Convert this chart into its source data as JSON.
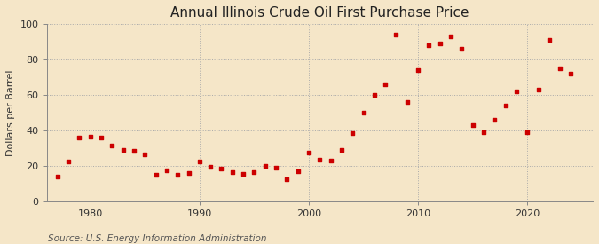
{
  "title": "Annual Illinois Crude Oil First Purchase Price",
  "ylabel": "Dollars per Barrel",
  "source": "Source: U.S. Energy Information Administration",
  "background_color": "#f5e6c8",
  "marker_color": "#cc0000",
  "years": [
    1977,
    1978,
    1979,
    1980,
    1981,
    1982,
    1983,
    1984,
    1985,
    1986,
    1987,
    1988,
    1989,
    1990,
    1991,
    1992,
    1993,
    1994,
    1995,
    1996,
    1997,
    1998,
    1999,
    2000,
    2001,
    2002,
    2003,
    2004,
    2005,
    2006,
    2007,
    2008,
    2009,
    2010,
    2011,
    2012,
    2013,
    2014,
    2015,
    2016,
    2017,
    2018,
    2019,
    2020,
    2021,
    2022,
    2023,
    2024
  ],
  "values": [
    14.0,
    22.5,
    36.0,
    36.5,
    36.0,
    31.5,
    29.0,
    28.5,
    26.5,
    15.0,
    17.5,
    15.0,
    16.0,
    22.5,
    19.5,
    18.5,
    16.5,
    15.5,
    16.5,
    20.0,
    19.0,
    12.5,
    17.0,
    27.5,
    23.5,
    23.0,
    29.0,
    38.5,
    50.0,
    60.0,
    66.0,
    94.0,
    56.0,
    74.0,
    88.0,
    89.0,
    93.0,
    86.0,
    43.0,
    39.0,
    46.0,
    54.0,
    62.0,
    39.0,
    63.0,
    91.0,
    75.0,
    72.0
  ],
  "ylim": [
    0,
    100
  ],
  "yticks": [
    0,
    20,
    40,
    60,
    80,
    100
  ],
  "xlim": [
    1976,
    2026
  ],
  "xtick_major": [
    1980,
    1990,
    2000,
    2010,
    2020
  ],
  "grid_color": "#aaaaaa",
  "title_fontsize": 11,
  "label_fontsize": 8,
  "source_fontsize": 7.5
}
